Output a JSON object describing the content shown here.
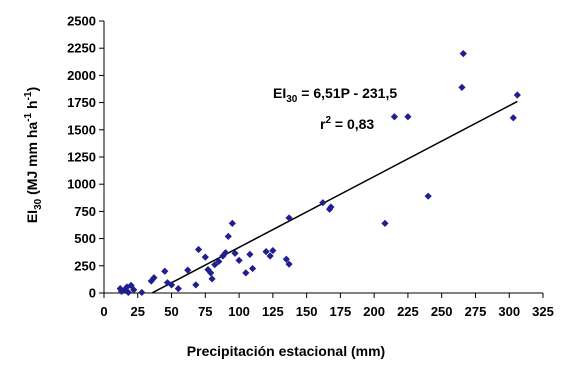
{
  "chart_data": {
    "type": "scatter",
    "xlabel": "Precipitación estacional (mm)",
    "ylabel": {
      "prefix": "EI",
      "sub": "30",
      "rest_a": " (MJ mm ha",
      "sup1": "-1",
      "rest_b": " h",
      "sup2": "-1",
      "rest_c": ")"
    },
    "xlim": [
      0,
      325
    ],
    "ylim": [
      0,
      2500
    ],
    "xticks": [
      0,
      25,
      50,
      75,
      100,
      125,
      150,
      175,
      200,
      225,
      250,
      275,
      300,
      325
    ],
    "yticks": [
      0,
      250,
      500,
      750,
      1000,
      1250,
      1500,
      1750,
      2000,
      2250,
      2500
    ],
    "grid": false,
    "legend": "none",
    "marker_color": "#1f1f8f",
    "points": [
      {
        "x": 12,
        "y": 40
      },
      {
        "x": 13,
        "y": 15
      },
      {
        "x": 15,
        "y": 25
      },
      {
        "x": 17,
        "y": 55
      },
      {
        "x": 18,
        "y": 5
      },
      {
        "x": 20,
        "y": 70
      },
      {
        "x": 22,
        "y": 30
      },
      {
        "x": 28,
        "y": 5
      },
      {
        "x": 35,
        "y": 110
      },
      {
        "x": 37,
        "y": 140
      },
      {
        "x": 45,
        "y": 200
      },
      {
        "x": 47,
        "y": 95
      },
      {
        "x": 50,
        "y": 75
      },
      {
        "x": 55,
        "y": 40
      },
      {
        "x": 62,
        "y": 210
      },
      {
        "x": 68,
        "y": 75
      },
      {
        "x": 70,
        "y": 400
      },
      {
        "x": 75,
        "y": 330
      },
      {
        "x": 77,
        "y": 215
      },
      {
        "x": 79,
        "y": 185
      },
      {
        "x": 80,
        "y": 130
      },
      {
        "x": 82,
        "y": 260
      },
      {
        "x": 85,
        "y": 290
      },
      {
        "x": 88,
        "y": 340
      },
      {
        "x": 90,
        "y": 370
      },
      {
        "x": 92,
        "y": 520
      },
      {
        "x": 95,
        "y": 640
      },
      {
        "x": 97,
        "y": 365
      },
      {
        "x": 100,
        "y": 300
      },
      {
        "x": 105,
        "y": 185
      },
      {
        "x": 108,
        "y": 355
      },
      {
        "x": 110,
        "y": 225
      },
      {
        "x": 120,
        "y": 380
      },
      {
        "x": 123,
        "y": 340
      },
      {
        "x": 125,
        "y": 390
      },
      {
        "x": 135,
        "y": 310
      },
      {
        "x": 137,
        "y": 265
      },
      {
        "x": 137,
        "y": 690
      },
      {
        "x": 162,
        "y": 830
      },
      {
        "x": 167,
        "y": 770
      },
      {
        "x": 168,
        "y": 790
      },
      {
        "x": 208,
        "y": 640
      },
      {
        "x": 215,
        "y": 1620
      },
      {
        "x": 225,
        "y": 1620
      },
      {
        "x": 240,
        "y": 890
      },
      {
        "x": 265,
        "y": 1890
      },
      {
        "x": 266,
        "y": 2200
      },
      {
        "x": 303,
        "y": 1610
      },
      {
        "x": 306,
        "y": 1820
      }
    ],
    "trendline": {
      "slope": 6.51,
      "intercept": -231.5,
      "x_range": [
        35.6,
        306
      ]
    },
    "annotation": {
      "equation": {
        "prefix": "EI",
        "sub": "30",
        "rest": " = 6,51P - 231,5"
      },
      "r2": {
        "prefix": "r",
        "sup": "2",
        "rest": " = 0,83"
      }
    }
  }
}
